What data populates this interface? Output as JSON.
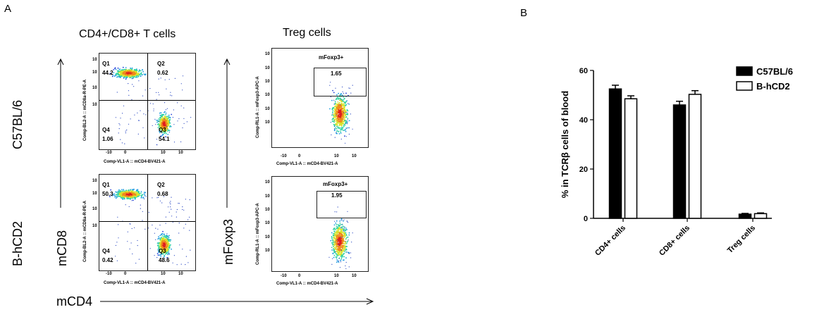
{
  "panel_a": {
    "letter": "A",
    "col_titles": [
      "CD4+/CD8+ T cells",
      "Treg cells"
    ],
    "row_labels": [
      "C57BL/6",
      "B-hCD2"
    ],
    "y_labels": [
      "mCD8",
      "mFoxp3"
    ],
    "x_label": "mCD4",
    "quad_x_axis": "Comp-VL1-A :: mCD4-BV421-A",
    "quad_y_axis": "Comp-BL2-A :: mCD8a-R-PE-A",
    "treg_x_axis": "Comp-VL1-A :: mCD4-BV421-A",
    "treg_y_axis": "Comp-RL1-A :: mFoxp3-APC-A",
    "quadrant_names": [
      "Q1",
      "Q2",
      "Q3",
      "Q4"
    ],
    "tick_labels_y": [
      "10",
      "10",
      "10",
      "10",
      "10",
      "10"
    ],
    "tick_labels_x": [
      "-10",
      "0",
      "10",
      "10"
    ],
    "gate_name": "mFoxp3+",
    "plots": [
      {
        "q1": "44.2",
        "q2": "0.62",
        "q3": "54.1",
        "q4": "1.06",
        "foxp3": "1.65"
      },
      {
        "q1": "50.3",
        "q2": "0.68",
        "q3": "48.6",
        "q4": "0.42",
        "foxp3": "1.95"
      }
    ]
  },
  "panel_b": {
    "letter": "B"
  },
  "chart_data": {
    "type": "bar",
    "categories": [
      "CD4+ cells",
      "CD8+ cells",
      "Treg cells"
    ],
    "series": [
      {
        "name": "C57BL/6",
        "values": [
          52.5,
          46.0,
          1.7
        ],
        "errors": [
          1.5,
          1.5,
          0.3
        ],
        "fill": "#000000"
      },
      {
        "name": "B-hCD2",
        "values": [
          48.5,
          50.3,
          1.9
        ],
        "errors": [
          1.2,
          1.5,
          0.3
        ],
        "fill": "#ffffff"
      }
    ],
    "ylabel": "% in TCRβ cells of blood",
    "ylim": [
      0,
      60
    ],
    "yticks": [
      "0",
      "20",
      "40",
      "60"
    ],
    "legend": "top-right"
  }
}
